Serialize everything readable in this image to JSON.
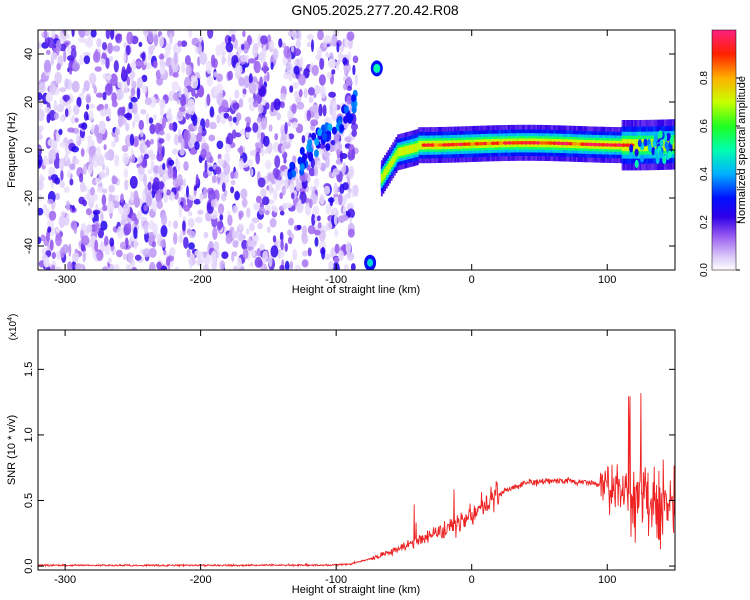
{
  "title": "GN05.2025.277.20.42.R08",
  "chart_data": [
    {
      "type": "heatmap",
      "xlabel": "Height of straight line (km)",
      "ylabel": "Frequency (Hz)",
      "xlim": [
        -320,
        150
      ],
      "ylim": [
        -50,
        50
      ],
      "xticks": [
        -300,
        -200,
        -100,
        0,
        100
      ],
      "yticks": [
        -40,
        -20,
        0,
        20,
        40
      ],
      "colorbar": {
        "label": "Normalized spectral amplitude",
        "range": [
          0,
          1
        ],
        "ticks": [
          0.0,
          0.2,
          0.4,
          0.6,
          0.8
        ],
        "tick_labels": [
          "0.0",
          "0.2",
          "0.4",
          "0.6",
          "0.8"
        ],
        "colormap": [
          "#ffffff",
          "#b68cf0",
          "#5a00e6",
          "#0000ff",
          "#00c8ff",
          "#00ff66",
          "#c8ff00",
          "#ffa000",
          "#ff0000",
          "#ff0080"
        ]
      },
      "regions": [
        {
          "name": "noise",
          "x_range": [
            -320,
            -85
          ],
          "freq_range": [
            -50,
            50
          ],
          "amplitude": 0.1
        },
        {
          "name": "signal_band",
          "x_range": [
            -65,
            150
          ],
          "center_freq": 2.5,
          "amplitude_peak": 0.95
        },
        {
          "name": "blob_upper",
          "x": -70,
          "freq": 34,
          "amplitude": 0.45
        },
        {
          "name": "blob_lower",
          "x": -75,
          "freq": -47,
          "amplitude": 0.35
        }
      ]
    },
    {
      "type": "line",
      "xlabel": "Height of straight line (km)",
      "ylabel": "SNR (10 * v/v)",
      "y_multiplier": "(x10",
      "y_multiplier_exp": "4",
      "xlim": [
        -320,
        150
      ],
      "ylim": [
        -0.03,
        1.8
      ],
      "xticks": [
        -300,
        -200,
        -100,
        0,
        100
      ],
      "yticks": [
        0.0,
        0.5,
        1.0,
        1.5
      ],
      "ytick_labels": [
        "0.0",
        "0.5",
        "1.0",
        "1.5"
      ],
      "series_color": "#ee2222",
      "x": [
        -320,
        -300,
        -250,
        -200,
        -150,
        -100,
        -90,
        -80,
        -70,
        -60,
        -50,
        -40,
        -30,
        -20,
        -10,
        0,
        10,
        20,
        30,
        40,
        50,
        60,
        70,
        80,
        90,
        100,
        110,
        120,
        130,
        140,
        150
      ],
      "values": [
        0.005,
        0.006,
        0.005,
        0.006,
        0.006,
        0.008,
        0.015,
        0.04,
        0.07,
        0.11,
        0.15,
        0.19,
        0.24,
        0.28,
        0.33,
        0.38,
        0.47,
        0.55,
        0.6,
        0.63,
        0.64,
        0.65,
        0.65,
        0.64,
        0.63,
        0.62,
        0.58,
        0.55,
        0.52,
        0.5,
        0.5
      ]
    }
  ]
}
